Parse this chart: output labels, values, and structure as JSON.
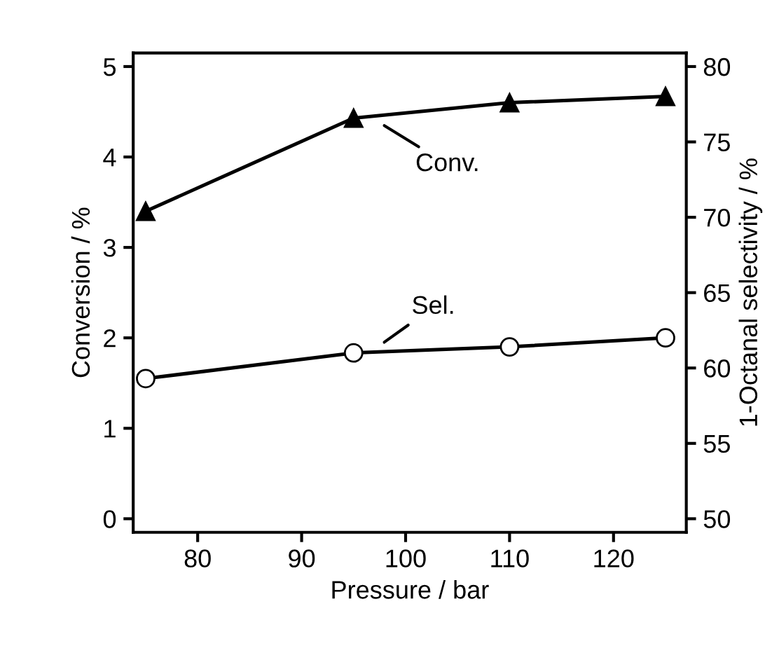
{
  "chart_data": {
    "type": "line",
    "xlabel": "Pressure / bar",
    "ylabel": "Conversion / %",
    "y2label": "1-Octanal selectivity / %",
    "x": [
      75,
      95,
      110,
      125
    ],
    "series": [
      {
        "name": "Conv.",
        "color": "#000000",
        "marker": "triangle",
        "values": [
          3.4,
          4.43,
          4.6,
          4.67
        ]
      },
      {
        "name": "Sel.",
        "color": "#000000",
        "marker": "circle",
        "axis": "y2",
        "values": [
          59.3,
          61.0,
          61.4,
          62.0
        ]
      }
    ],
    "xlim": [
      73.8,
      127
    ],
    "xticks": [
      80,
      90,
      100,
      110,
      120
    ],
    "ylim": [
      -0.15,
      5.15
    ],
    "yticks": [
      0,
      1,
      2,
      3,
      4,
      5
    ],
    "y2lim": [
      49.1,
      80.9
    ],
    "y2ticks": [
      50,
      55,
      60,
      65,
      70,
      75,
      80
    ],
    "grid": false,
    "line_style": "solid"
  }
}
